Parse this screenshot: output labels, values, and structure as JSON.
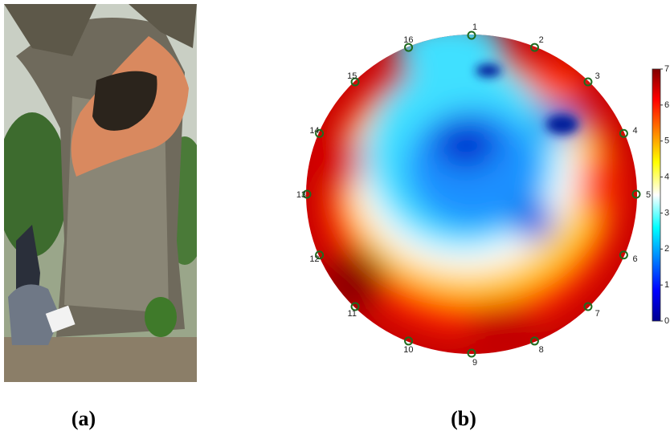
{
  "figure": {
    "panels": [
      {
        "label": "(a)"
      },
      {
        "label": "(b)"
      }
    ],
    "sensors": [
      "1",
      "2",
      "3",
      "4",
      "5",
      "6",
      "7",
      "8",
      "9",
      "10",
      "11",
      "12",
      "13",
      "14",
      "15",
      "16"
    ],
    "colorbar": {
      "lim": [
        0,
        7
      ],
      "ticks": [
        0,
        1,
        2,
        3,
        4,
        5,
        6,
        7
      ]
    }
  }
}
